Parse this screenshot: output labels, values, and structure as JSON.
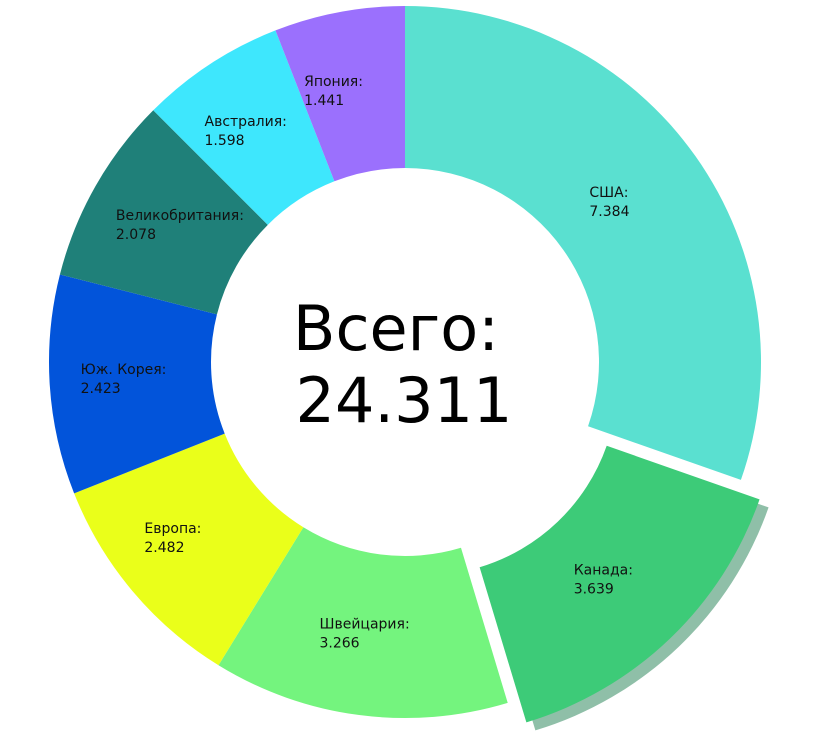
{
  "chart_data": {
    "type": "pie",
    "style": "donut",
    "center_label": "Всего:",
    "center_value": "24.311",
    "start_angle_deg": 0,
    "direction": "clockwise",
    "highlighted": "Канада",
    "slices": [
      {
        "name": "США",
        "label": "США:",
        "value_label": "7.384",
        "value": 7.384,
        "color": "#5ae0d0"
      },
      {
        "name": "Канада",
        "label": "Канада:",
        "value_label": "3.639",
        "value": 3.639,
        "color": "#3dcb78",
        "shadow_color": "#8fbfa8"
      },
      {
        "name": "Швейцария",
        "label": "Швейцария:",
        "value_label": "3.266",
        "value": 3.266,
        "color": "#74f47e"
      },
      {
        "name": "Европа",
        "label": "Европа:",
        "value_label": "2.482",
        "value": 2.482,
        "color": "#eaff1a"
      },
      {
        "name": "Юж. Корея",
        "label": "Юж. Корея:",
        "value_label": "2.423",
        "value": 2.423,
        "color": "#0254da"
      },
      {
        "name": "Великобритания",
        "label": "Великобритания:",
        "value_label": "2.078",
        "value": 2.078,
        "color": "#1f8079"
      },
      {
        "name": "Австралия",
        "label": "Австралия:",
        "value_label": "1.598",
        "value": 1.598,
        "color": "#3ee7fd"
      },
      {
        "name": "Япония",
        "label": "Япония:",
        "value_label": "1.441",
        "value": 1.441,
        "color": "#9b70fd"
      }
    ]
  }
}
